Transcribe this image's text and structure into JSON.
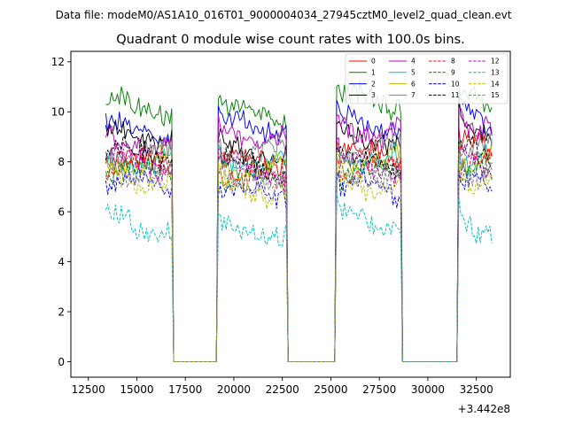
{
  "chart_data": {
    "type": "line",
    "suptitle": "Data file: modeM0/AS1A10_016T01_9000004034_27945cztM0_level2_quad_clean.evt",
    "title": "Quadrant 0 module wise count rates with 100.0s bins.",
    "xlabel": "",
    "ylabel": "",
    "x_offset_label": "+3.442e8",
    "x_offset": 344200000,
    "xlim": [
      11600,
      34250
    ],
    "ylim": [
      -0.62,
      12.42
    ],
    "x_ticks": [
      12500,
      15000,
      17500,
      20000,
      22500,
      25000,
      27500,
      30000,
      32500
    ],
    "x_tick_labels": [
      "12500",
      "15000",
      "17500",
      "20000",
      "22500",
      "25000",
      "27500",
      "30000",
      "32500"
    ],
    "y_ticks": [
      0,
      2,
      4,
      6,
      8,
      10,
      12
    ],
    "y_tick_labels": [
      "0",
      "2",
      "4",
      "6",
      "8",
      "10",
      "12"
    ],
    "bin_size_s": 100,
    "x_start": 13400,
    "x_end": 33300,
    "on_segments": [
      [
        13400,
        16800
      ],
      [
        19200,
        22700
      ],
      [
        25300,
        28600
      ],
      [
        31600,
        33300
      ]
    ],
    "legend_position": "top-right",
    "grid": false,
    "series": [
      {
        "name": "0",
        "color": "#ff0000",
        "dash": "solid",
        "levels": [
          8.0,
          8.0,
          8.3,
          8.7
        ]
      },
      {
        "name": "1",
        "color": "#008000",
        "dash": "solid",
        "levels": [
          10.2,
          10.0,
          10.5,
          10.6
        ]
      },
      {
        "name": "2",
        "color": "#0000ff",
        "dash": "solid",
        "levels": [
          9.3,
          9.5,
          9.6,
          9.9
        ]
      },
      {
        "name": "3",
        "color": "#000000",
        "dash": "solid",
        "levels": [
          9.1,
          8.5,
          9.1,
          9.4
        ]
      },
      {
        "name": "4",
        "color": "#bf00bf",
        "dash": "solid",
        "levels": [
          8.9,
          9.2,
          9.4,
          9.6
        ]
      },
      {
        "name": "5",
        "color": "#00bfbf",
        "dash": "solid",
        "levels": [
          8.1,
          8.0,
          8.3,
          8.3
        ]
      },
      {
        "name": "6",
        "color": "#bfbf00",
        "dash": "solid",
        "levels": [
          8.2,
          7.9,
          8.1,
          8.2
        ]
      },
      {
        "name": "7",
        "color": "#808080",
        "dash": "solid",
        "levels": [
          8.4,
          8.4,
          8.6,
          8.8
        ]
      },
      {
        "name": "8",
        "color": "#ff0000",
        "dash": "dashed",
        "levels": [
          7.9,
          7.4,
          7.7,
          8.0
        ]
      },
      {
        "name": "9",
        "color": "#008000",
        "dash": "dashed",
        "levels": [
          7.6,
          7.2,
          7.5,
          7.6
        ]
      },
      {
        "name": "10",
        "color": "#0000ff",
        "dash": "dashed",
        "levels": [
          7.2,
          6.7,
          6.9,
          7.1
        ]
      },
      {
        "name": "11",
        "color": "#000000",
        "dash": "dashed",
        "levels": [
          8.3,
          7.8,
          8.1,
          8.5
        ]
      },
      {
        "name": "12",
        "color": "#bf00bf",
        "dash": "dashed",
        "levels": [
          8.0,
          7.7,
          7.9,
          8.1
        ]
      },
      {
        "name": "13",
        "color": "#00bfbf",
        "dash": "dashed",
        "levels": [
          5.6,
          5.3,
          5.8,
          5.4
        ]
      },
      {
        "name": "14",
        "color": "#bfbf00",
        "dash": "dashed",
        "levels": [
          7.4,
          7.0,
          7.2,
          7.3
        ]
      },
      {
        "name": "15",
        "color": "#808080",
        "dash": "dashed",
        "levels": [
          7.7,
          7.4,
          7.6,
          7.8
        ]
      }
    ]
  }
}
